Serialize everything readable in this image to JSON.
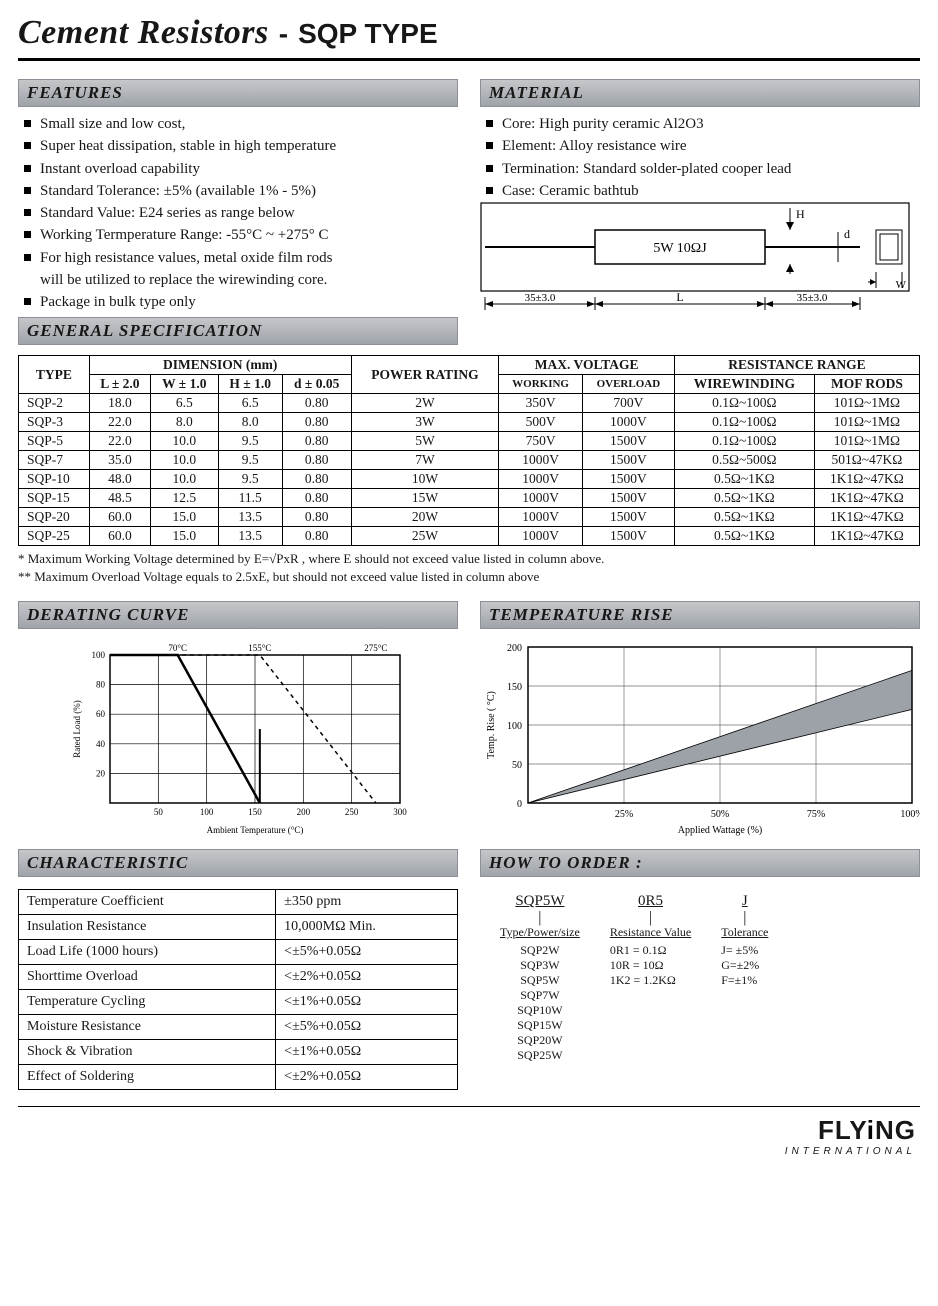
{
  "title": {
    "main": "Cement Resistors",
    "sep": "-",
    "sub": "SQP  TYPE"
  },
  "sections": {
    "features": "FEATURES",
    "material": "MATERIAL",
    "genspec": "GENERAL SPECIFICATION",
    "derating": "DERATING CURVE",
    "temprise": "TEMPERATURE RISE",
    "characteristic": "CHARACTERISTIC",
    "order": "HOW TO ORDER :"
  },
  "features_items": [
    "Small size and low cost,",
    "Super heat dissipation, stable in high temperature",
    "Instant overload capability",
    "Standard Tolerance: ±5% (available 1% - 5%)",
    "Standard Value: E24 series as range below",
    "Working Termperature Range: -55°C ~ +275° C",
    "For high resistance values, metal oxide film rods",
    "will be utilized to replace the wirewinding core.",
    "Package in bulk type only"
  ],
  "features_cont_indices": [
    7
  ],
  "material_items": [
    "Core: High purity ceramic Al2O3",
    "Element: Alloy resistance wire",
    "Termination: Standard solder-plated cooper lead",
    "Case: Ceramic bathtub"
  ],
  "dim_diagram": {
    "label_inside": "5W  10ΩJ",
    "dim_H": "H",
    "dim_d": "d",
    "dim_W": "W",
    "lead_left": "35±3.0",
    "body": "L",
    "lead_right": "35±3.0"
  },
  "spec_table": {
    "head": {
      "type": "TYPE",
      "dim": "DIMENSION (mm)",
      "dim_L": "L ± 2.0",
      "dim_W": "W ± 1.0",
      "dim_H": "H ± 1.0",
      "dim_d": "d ± 0.05",
      "power": "POWER RATING",
      "maxv": "MAX. VOLTAGE",
      "work": "WORKING",
      "over": "OVERLOAD",
      "res": "RESISTANCE RANGE",
      "wire": "WIREWINDING",
      "mof": "MOF RODS"
    },
    "rows": [
      [
        "SQP-2",
        "18.0",
        "6.5",
        "6.5",
        "0.80",
        "2W",
        "350V",
        "700V",
        "0.1Ω~100Ω",
        "101Ω~1MΩ"
      ],
      [
        "SQP-3",
        "22.0",
        "8.0",
        "8.0",
        "0.80",
        "3W",
        "500V",
        "1000V",
        "0.1Ω~100Ω",
        "101Ω~1MΩ"
      ],
      [
        "SQP-5",
        "22.0",
        "10.0",
        "9.5",
        "0.80",
        "5W",
        "750V",
        "1500V",
        "0.1Ω~100Ω",
        "101Ω~1MΩ"
      ],
      [
        "SQP-7",
        "35.0",
        "10.0",
        "9.5",
        "0.80",
        "7W",
        "1000V",
        "1500V",
        "0.5Ω~500Ω",
        "501Ω~47KΩ"
      ],
      [
        "SQP-10",
        "48.0",
        "10.0",
        "9.5",
        "0.80",
        "10W",
        "1000V",
        "1500V",
        "0.5Ω~1KΩ",
        "1K1Ω~47KΩ"
      ],
      [
        "SQP-15",
        "48.5",
        "12.5",
        "11.5",
        "0.80",
        "15W",
        "1000V",
        "1500V",
        "0.5Ω~1KΩ",
        "1K1Ω~47KΩ"
      ],
      [
        "SQP-20",
        "60.0",
        "15.0",
        "13.5",
        "0.80",
        "20W",
        "1000V",
        "1500V",
        "0.5Ω~1KΩ",
        "1K1Ω~47KΩ"
      ],
      [
        "SQP-25",
        "60.0",
        "15.0",
        "13.5",
        "0.80",
        "25W",
        "1000V",
        "1500V",
        "0.5Ω~1KΩ",
        "1K1Ω~47KΩ"
      ]
    ]
  },
  "notes": {
    "n1": "*   Maximum Working Voltage determined by E=√PxR ,    where E should not exceed value listed in column above.",
    "n2": "** Maximum Overload Voltage equals to 2.5xE, but should not exceed value listed in column above"
  },
  "derating_chart": {
    "type": "line",
    "xlabel": "Ambient Temperature (°C)",
    "ylabel": "Rated Load (%)",
    "xlim": [
      0,
      300
    ],
    "ylim": [
      0,
      100
    ],
    "xticks": [
      50,
      100,
      150,
      200,
      250,
      300
    ],
    "yticks": [
      20,
      40,
      60,
      80,
      100
    ],
    "top_labels": [
      {
        "x": 70,
        "text": "70°C"
      },
      {
        "x": 155,
        "text": "155°C"
      },
      {
        "x": 275,
        "text": "275°C"
      }
    ],
    "grid_color": "#000000",
    "border_color": "#000000",
    "background_color": "#ffffff",
    "series": [
      {
        "name": "solid",
        "color": "#000000",
        "width": 2.5,
        "dash": "none",
        "points": [
          [
            0,
            100
          ],
          [
            70,
            100
          ],
          [
            155,
            0
          ]
        ]
      },
      {
        "name": "drop70",
        "color": "#000000",
        "width": 2,
        "dash": "none",
        "points": [
          [
            155,
            50
          ],
          [
            155,
            0
          ]
        ]
      },
      {
        "name": "dashed",
        "color": "#000000",
        "width": 1.5,
        "dash": "4,4",
        "points": [
          [
            0,
            100
          ],
          [
            155,
            100
          ],
          [
            275,
            0
          ]
        ]
      }
    ],
    "label_fontsize": 9
  },
  "temprise_chart": {
    "type": "area",
    "xlabel": "Applied Wattage  (%)",
    "ylabel": "Temp. Rise ( °C)",
    "xlim": [
      0,
      100
    ],
    "ylim": [
      0,
      200
    ],
    "xticks": [
      "25%",
      "50%",
      "75%",
      "100%"
    ],
    "yticks": [
      0,
      50,
      100,
      150,
      200
    ],
    "grid_color": "#6a6e73",
    "border_color": "#000000",
    "fill_color": "#9da2a8",
    "background_color": "#ffffff",
    "upper": [
      [
        0,
        0
      ],
      [
        100,
        170
      ]
    ],
    "lower": [
      [
        0,
        0
      ],
      [
        100,
        120
      ]
    ],
    "label_fontsize": 10
  },
  "char_table": {
    "rows": [
      [
        "Temperature Coefficient",
        "±350 ppm"
      ],
      [
        "Insulation Resistance",
        "10,000MΩ  Min."
      ],
      [
        "Load Life (1000 hours)",
        "<±5%+0.05Ω"
      ],
      [
        "Shorttime Overload",
        "<±2%+0.05Ω"
      ],
      [
        "Temperature Cycling",
        "<±1%+0.05Ω"
      ],
      [
        "Moisture Resistance",
        "<±5%+0.05Ω"
      ],
      [
        "Shock & Vibration",
        "<±1%+0.05Ω"
      ],
      [
        "Effect of Soldering",
        "<±2%+0.05Ω"
      ]
    ]
  },
  "order": {
    "cols": [
      {
        "head": "SQP5W",
        "label": "Type/Power/size",
        "values": [
          "SQP2W",
          "SQP3W",
          "SQP5W",
          "SQP7W",
          "SQP10W",
          "SQP15W",
          "SQP20W",
          "SQP25W"
        ]
      },
      {
        "head": "0R5",
        "label": "Resistance Value",
        "values": [
          "0R1 = 0.1Ω",
          "10R = 10Ω",
          "1K2 = 1.2KΩ"
        ]
      },
      {
        "head": "J",
        "label": "Tolerance",
        "values": [
          "J= ±5%",
          "G=±2%",
          "F=±1%"
        ]
      }
    ]
  },
  "footer": {
    "brand": "FLY",
    "brand_i": "i",
    "brand_end": "NG",
    "sub": "INTERNATIONAL"
  },
  "colors": {
    "headbar": "#a9aeb4",
    "text": "#171717"
  }
}
